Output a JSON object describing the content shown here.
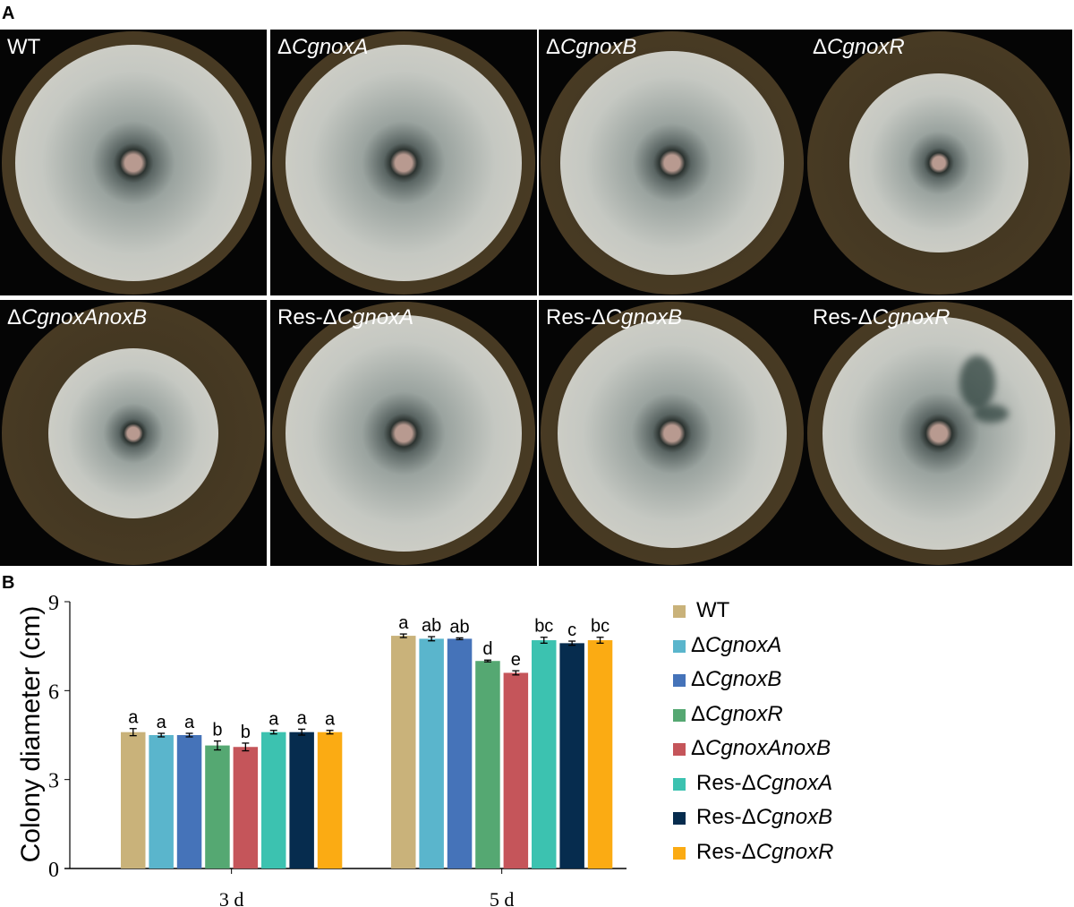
{
  "panels": {
    "a": "A",
    "b": "B"
  },
  "genotypes": [
    {
      "prefix": "WT",
      "italic": "",
      "color": "#c9b27a"
    },
    {
      "prefix": "Δ",
      "italic": "CgnoxA",
      "color": "#5ab5cc"
    },
    {
      "prefix": "Δ",
      "italic": "CgnoxB",
      "color": "#4573b9"
    },
    {
      "prefix": "Δ",
      "italic": "CgnoxR",
      "color": "#55a872"
    },
    {
      "prefix": "Δ",
      "italic": "CgnoxAnoxB",
      "color": "#c5555a"
    },
    {
      "prefix": "Res-Δ",
      "italic": "CgnoxA",
      "color": "#3cc2b0"
    },
    {
      "prefix": "Res-Δ",
      "italic": "CgnoxB",
      "color": "#062c4e"
    },
    {
      "prefix": "Res-Δ",
      "italic": "CgnoxR",
      "color": "#fbab13"
    }
  ],
  "chart_data": {
    "type": "bar",
    "categories": [
      "3 d",
      "5 d"
    ],
    "ylabel": "Colony diameter (cm)",
    "xlabel": "",
    "ylim": [
      0,
      9
    ],
    "yticks": [
      0,
      3,
      6,
      9
    ],
    "legend_position": "right",
    "series": [
      {
        "name": "WT",
        "values": [
          4.6,
          7.85
        ],
        "errors": [
          0.12,
          0.06
        ],
        "letters": [
          "a",
          "a"
        ]
      },
      {
        "name": "ΔCgnoxA",
        "values": [
          4.5,
          7.75
        ],
        "errors": [
          0.06,
          0.07
        ],
        "letters": [
          "a",
          "ab"
        ]
      },
      {
        "name": "ΔCgnoxB",
        "values": [
          4.5,
          7.75
        ],
        "errors": [
          0.06,
          0.03
        ],
        "letters": [
          "a",
          "ab"
        ]
      },
      {
        "name": "ΔCgnoxR",
        "values": [
          4.15,
          7.0
        ],
        "errors": [
          0.15,
          0.03
        ],
        "letters": [
          "b",
          "d"
        ]
      },
      {
        "name": "ΔCgnoxAnoxB",
        "values": [
          4.1,
          6.6
        ],
        "errors": [
          0.13,
          0.07
        ],
        "letters": [
          "b",
          "e"
        ]
      },
      {
        "name": "Res-ΔCgnoxA",
        "values": [
          4.6,
          7.7
        ],
        "errors": [
          0.06,
          0.1
        ],
        "letters": [
          "a",
          "bc"
        ]
      },
      {
        "name": "Res-ΔCgnoxB",
        "values": [
          4.6,
          7.6
        ],
        "errors": [
          0.1,
          0.07
        ],
        "letters": [
          "a",
          "c"
        ]
      },
      {
        "name": "Res-ΔCgnoxR",
        "values": [
          4.6,
          7.7
        ],
        "errors": [
          0.06,
          0.1
        ],
        "letters": [
          "a",
          "bc"
        ]
      }
    ]
  }
}
